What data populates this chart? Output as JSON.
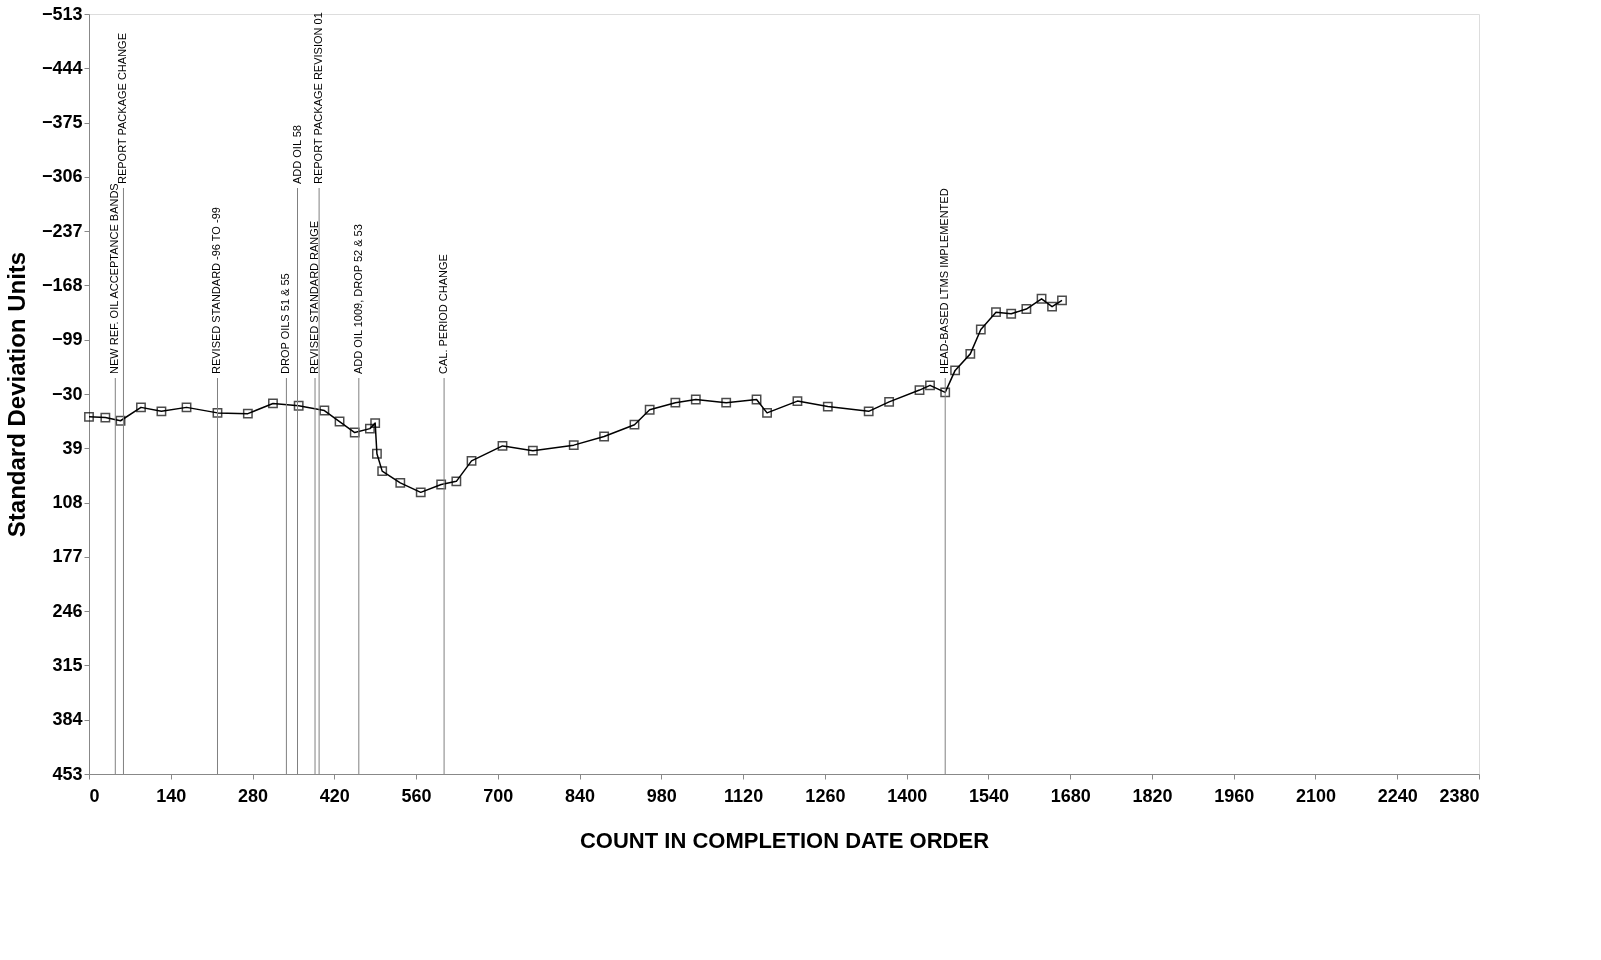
{
  "chart_data": {
    "type": "line",
    "xlabel": "COUNT IN COMPLETION DATE ORDER",
    "ylabel": "Standard Deviation Units",
    "x": [
      0,
      28,
      54,
      89,
      124,
      167,
      220,
      272,
      315,
      359,
      403,
      429,
      455,
      481,
      490,
      493,
      502,
      533,
      568,
      603,
      629,
      655,
      708,
      760,
      830,
      882,
      934,
      960,
      1004,
      1039,
      1091,
      1143,
      1161,
      1213,
      1265,
      1335,
      1370,
      1422,
      1440,
      1466,
      1483,
      1509,
      1527,
      1553,
      1579,
      1605,
      1631,
      1649,
      1666
    ],
    "series": [
      {
        "color": "#000000",
        "values": [
          -1,
          0,
          4,
          -13,
          -8,
          -13,
          -6,
          -5,
          -18,
          -15,
          -9,
          5,
          19,
          14,
          7,
          46,
          68,
          83,
          95,
          85,
          81,
          55,
          36,
          42,
          35,
          24,
          9,
          -10,
          -19,
          -23,
          -19,
          -23,
          -6,
          -21,
          -14,
          -8,
          -20,
          -35,
          -41,
          -32,
          -60,
          -81,
          -112,
          -134,
          -132,
          -138,
          -151,
          -141,
          -149
        ]
      }
    ],
    "xlim": [
      0,
      2380
    ],
    "ylim": [
      453,
      -513
    ],
    "xticks": [
      0,
      140,
      280,
      420,
      560,
      700,
      840,
      980,
      1120,
      1260,
      1400,
      1540,
      1680,
      1820,
      1960,
      2100,
      2240,
      2380
    ],
    "yticks": [
      -513,
      -444,
      -375,
      -306,
      -237,
      -168,
      -99,
      -30,
      39,
      108,
      177,
      246,
      315,
      384,
      453
    ],
    "grid": false,
    "marker": "square",
    "ref_lines": [
      {
        "axis": "x",
        "value": 45,
        "label": "NEW REF. OIL ACCEPTANCE BANDS",
        "color": "#808080"
      },
      {
        "axis": "x",
        "value": 59,
        "label": "REPORT PACKAGE CHANGE",
        "color": "#808080"
      },
      {
        "axis": "x",
        "value": 220,
        "label": "REVISED STANDARD -96 TO -99",
        "color": "#808080"
      },
      {
        "axis": "x",
        "value": 338,
        "label": "DROP OILS 51 & 55",
        "color": "#808080"
      },
      {
        "axis": "x",
        "value": 357,
        "label": "ADD OIL 58",
        "color": "#808080"
      },
      {
        "axis": "x",
        "value": 387,
        "label": "REVISED STANDARD RANGE",
        "color": "#808080"
      },
      {
        "axis": "x",
        "value": 394,
        "label": "REPORT PACKAGE REVISION 01",
        "color": "#808080"
      },
      {
        "axis": "x",
        "value": 462,
        "label": "ADD OIL 1009, DROP 52 & 53",
        "color": "#808080"
      },
      {
        "axis": "x",
        "value": 608,
        "label": "CAL. PERIOD CHANGE",
        "color": "#808080"
      },
      {
        "axis": "x",
        "value": 1466,
        "label": "HEAD-BASED LTMS IMPLEMENTED",
        "color": "#808080"
      }
    ]
  }
}
